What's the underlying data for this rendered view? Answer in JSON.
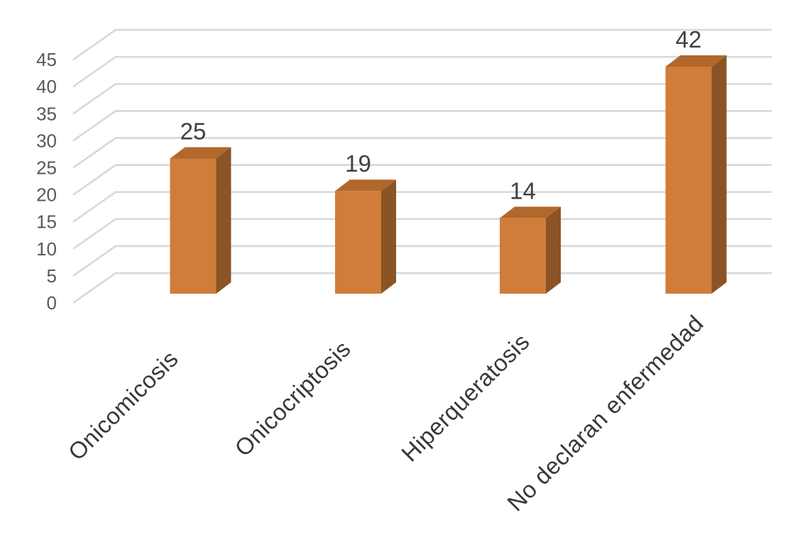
{
  "chart_data": {
    "type": "bar",
    "variant": "3d-column",
    "title": "",
    "xlabel": "",
    "ylabel": "",
    "legend": "none",
    "grid": true,
    "categories": [
      "Onicomicosis",
      "Onicocriptosis",
      "Hiperqueratosis",
      "No declaran enfermedad"
    ],
    "values": [
      25,
      19,
      14,
      42
    ],
    "data_labels": [
      "25",
      "19",
      "14",
      "42"
    ],
    "y_ticks": [
      0,
      5,
      10,
      15,
      20,
      25,
      30,
      35,
      40,
      45
    ],
    "ylim": [
      0,
      45
    ],
    "colors": {
      "bar_front": "#D07C3A",
      "bar_side": "#8A5426",
      "bar_top": "#B2682C",
      "gridline": "#D9D9D9",
      "tick_text": "#595959",
      "data_label_text": "#404040",
      "category_text": "#383838",
      "background": "#FFFFFF"
    }
  }
}
